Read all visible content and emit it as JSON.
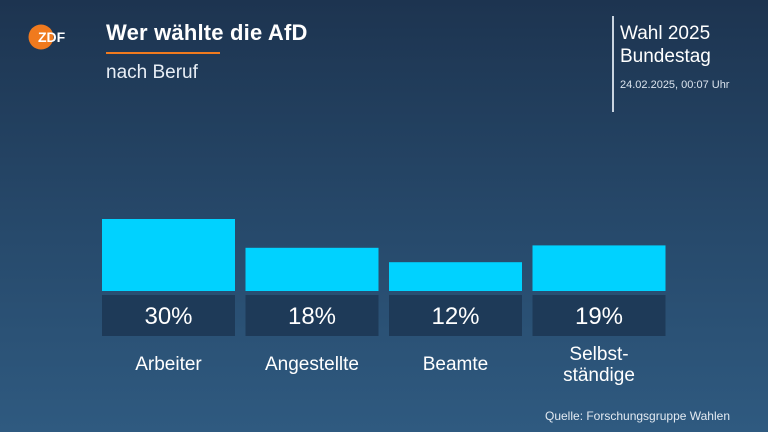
{
  "header": {
    "logo_text": "ZDF",
    "title": "Wer wählte die AfD",
    "subtitle": "nach Beruf",
    "election_line1": "Wahl 2025",
    "election_line2": "Bundestag",
    "timestamp": "24.02.2025, 00:07 Uhr"
  },
  "colors": {
    "bar": "#00d2ff",
    "label_box": "#1e3a58",
    "accent": "#f07a1e"
  },
  "chart_data": {
    "type": "bar",
    "categories": [
      "Arbeiter",
      "Angestellte",
      "Beamte",
      "Selbst-\nständige"
    ],
    "values": [
      30,
      18,
      12,
      19
    ],
    "value_labels": [
      "30%",
      "18%",
      "12%",
      "19%"
    ],
    "title": "Wer wählte die AfD",
    "subtitle": "nach Beruf",
    "ylim": [
      0,
      30
    ],
    "grid": false
  },
  "footer": {
    "source": "Quelle: Forschungsgruppe Wahlen"
  }
}
